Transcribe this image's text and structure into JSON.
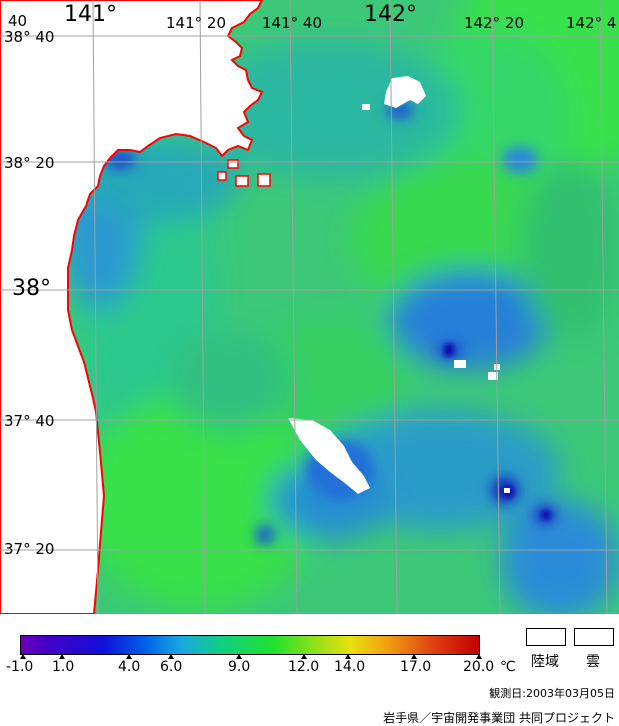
{
  "map": {
    "longitude_labels": [
      {
        "text": "141°",
        "size": "big"
      },
      {
        "text": "141° 20",
        "size": "small"
      },
      {
        "text": "141° 40",
        "size": "small"
      },
      {
        "text": "142°",
        "size": "big"
      },
      {
        "text": "142° 20",
        "size": "small"
      },
      {
        "text": "142° 4",
        "size": "small"
      }
    ],
    "latitude_labels": [
      {
        "text": "38° 40",
        "size": "small"
      },
      {
        "text": "38° 20",
        "size": "small"
      },
      {
        "text": "38°",
        "size": "big"
      },
      {
        "text": "37° 40",
        "size": "small"
      },
      {
        "text": "37° 20",
        "size": "small"
      }
    ],
    "corner_text": "40",
    "colors": {
      "sea_base": "#3cc878",
      "land": "#ffffff",
      "coastline": "#ff0000",
      "grid": "#a0a0a0",
      "cloud": "#ffffff",
      "cold_blue": "#1e64dc",
      "deep_blue": "#1010b0",
      "warm_green": "#30e040"
    }
  },
  "legend": {
    "ticks": [
      "-1.0",
      "1.0",
      "4.0",
      "6.0",
      "9.0",
      "12.0",
      "14.0",
      "17.0",
      "20.0"
    ],
    "unit": "℃",
    "land_label": "陸域",
    "cloud_label": "雲"
  },
  "footer": {
    "observation_date": "観測日:2003年03月05日",
    "credit": "岩手県／宇宙開発事業団 共同プロジェクト"
  }
}
